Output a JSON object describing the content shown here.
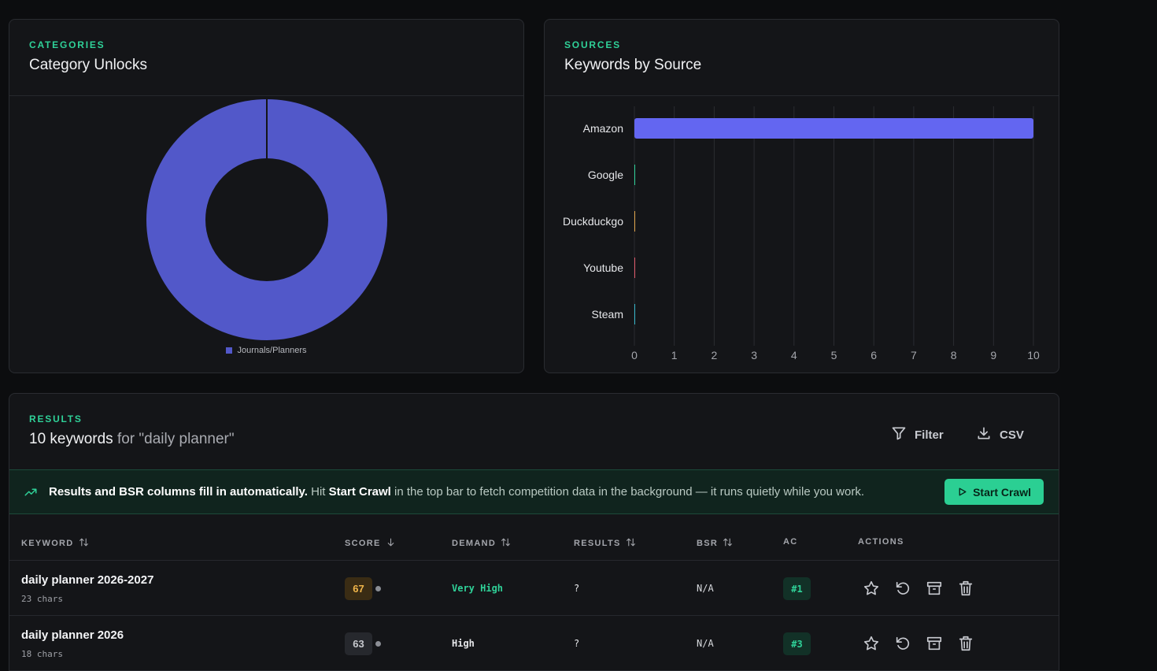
{
  "categories_card": {
    "eyebrow": "CATEGORIES",
    "title": "Category Unlocks",
    "legend_label": "Journals/Planners"
  },
  "sources_card": {
    "eyebrow": "SOURCES",
    "title": "Keywords by Source"
  },
  "chart_data": [
    {
      "type": "pie",
      "variant": "donut",
      "title": "Category Unlocks",
      "categories": [
        "Journals/Planners"
      ],
      "values": [
        1
      ],
      "colors": [
        "#5258c9"
      ],
      "legend": "bottom"
    },
    {
      "type": "bar",
      "orientation": "horizontal",
      "title": "Keywords by Source",
      "categories": [
        "Amazon",
        "Google",
        "Duckduckgo",
        "Youtube",
        "Steam"
      ],
      "values": [
        10,
        0,
        0,
        0,
        0
      ],
      "colors": [
        "#6366f1",
        "#2fd198",
        "#e0a44a",
        "#e05a6a",
        "#36b6c9"
      ],
      "xlim": [
        0,
        10
      ],
      "xticks": [
        "0",
        "1",
        "2",
        "3",
        "4",
        "5",
        "6",
        "7",
        "8",
        "9",
        "10"
      ],
      "grid": true
    }
  ],
  "results": {
    "eyebrow": "RESULTS",
    "title_bold": "10 keywords",
    "title_muted": "for \"daily planner\"",
    "filter_label": "Filter",
    "csv_label": "CSV",
    "banner": {
      "bold_lead": "Results and BSR columns fill in automatically.",
      "text1": "Hit",
      "bold_action": "Start Crawl",
      "text2": "in the top bar to fetch competition data in the background — it runs quietly while you work."
    },
    "start_crawl_label": "Start Crawl",
    "columns": {
      "keyword": "KEYWORD",
      "score": "SCORE",
      "demand": "DEMAND",
      "results": "RESULTS",
      "bsr": "BSR",
      "ac": "AC",
      "actions": "ACTIONS"
    },
    "rows": [
      {
        "keyword": "daily planner 2026-2027",
        "chars": "23 chars",
        "score": "67",
        "demand": "Very High",
        "results": "?",
        "bsr": "N/A",
        "ac": "#1"
      },
      {
        "keyword": "daily planner 2026",
        "chars": "18 chars",
        "score": "63",
        "demand": "High",
        "results": "?",
        "bsr": "N/A",
        "ac": "#3"
      }
    ]
  },
  "colors": {
    "accent": "#2fd198",
    "bar": "#6366f1",
    "donut": "#5258c9",
    "score_high_bg": "#3a2c14",
    "score_high_fg": "#f0b54a",
    "score_mid_bg": "#26282d",
    "score_mid_fg": "#c7c9ce",
    "demand_very_high": "#2fd198",
    "demand_high": "#e6e7ea"
  }
}
